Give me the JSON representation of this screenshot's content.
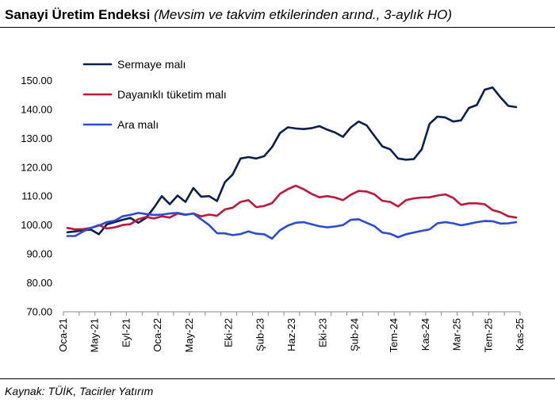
{
  "header": {
    "title": "Sanayi Üretim Endeksi",
    "subtitle": " (Mevsim ve takvim etkilerinden arınd., 3-aylık HO)"
  },
  "footer": {
    "source": "Kaynak: TÜİK, Tacirler Yatırım"
  },
  "chart_data": {
    "type": "line",
    "title": "Sanayi Üretim Endeksi",
    "xlabel": "",
    "ylabel": "",
    "ylim": [
      70,
      160
    ],
    "y_ticks": [
      "70.00",
      "80.00",
      "90.00",
      "100.00",
      "110.00",
      "120.00",
      "130.00",
      "140.00",
      "150.00"
    ],
    "x_ticks": [
      "Oca-21",
      "May-21",
      "Eyl-21",
      "Oca-22",
      "May-22",
      "Eki-22",
      "Şub-23",
      "Haz-23",
      "Eki-23",
      "Şub-24",
      "Tem-24",
      "Kas-24",
      "Mar-25",
      "Tem-25",
      "Kas-25"
    ],
    "x_tick_index": [
      0,
      4,
      8,
      12,
      16,
      21,
      25,
      29,
      33,
      37,
      42,
      46,
      50,
      54,
      58
    ],
    "grid": false,
    "legend": "top-left",
    "n_points": 58,
    "series": [
      {
        "name": "Sermaye malı",
        "color": "#0b1f4f",
        "values": [
          97.5,
          97.8,
          98.2,
          98.4,
          96.8,
          100.2,
          101.0,
          101.8,
          102.5,
          100.8,
          102.5,
          106.0,
          110.0,
          107.2,
          110.2,
          108.0,
          112.8,
          109.8,
          110.0,
          108.3,
          114.8,
          117.5,
          123.0,
          123.5,
          123.0,
          123.8,
          127.0,
          131.8,
          133.8,
          133.4,
          133.2,
          133.5,
          134.2,
          133.0,
          132.0,
          130.5,
          133.8,
          135.8,
          134.5,
          130.8,
          127.2,
          126.2,
          123.0,
          122.6,
          122.8,
          126.2,
          135.0,
          137.5,
          137.2,
          135.8,
          136.2,
          140.5,
          141.5,
          146.8,
          147.6,
          144.2,
          141.2,
          140.8
        ]
      },
      {
        "name": "Dayanıklı tüketim malı",
        "color": "#c0163a",
        "values": [
          99.0,
          98.5,
          98.6,
          99.0,
          100.0,
          98.8,
          99.2,
          100.0,
          100.3,
          102.0,
          102.8,
          102.3,
          103.0,
          102.6,
          104.0,
          103.5,
          104.0,
          103.0,
          103.6,
          103.2,
          105.4,
          106.0,
          108.0,
          108.6,
          106.2,
          106.6,
          107.6,
          110.8,
          112.4,
          113.6,
          112.4,
          110.8,
          109.6,
          110.0,
          109.5,
          108.6,
          110.5,
          111.8,
          111.6,
          110.6,
          108.4,
          108.0,
          106.4,
          108.6,
          109.2,
          109.5,
          109.6,
          110.2,
          110.6,
          109.4,
          107.0,
          107.5,
          107.5,
          107.2,
          105.2,
          104.4,
          103.0,
          102.6
        ]
      },
      {
        "name": "Ara malı",
        "color": "#2b4bd6",
        "values": [
          96.2,
          96.2,
          97.8,
          99.0,
          99.8,
          101.0,
          101.5,
          103.0,
          103.5,
          104.2,
          103.8,
          103.5,
          103.6,
          104.0,
          104.2,
          103.6,
          104.0,
          102.0,
          100.0,
          97.2,
          97.1,
          96.5,
          96.9,
          97.8,
          97.0,
          96.8,
          95.3,
          98.2,
          99.8,
          100.8,
          101.0,
          100.3,
          99.6,
          99.2,
          99.5,
          100.0,
          101.8,
          102.0,
          100.8,
          99.6,
          97.4,
          97.0,
          95.8,
          96.8,
          97.4,
          98.0,
          98.5,
          100.6,
          101.0,
          100.6,
          99.9,
          100.4,
          101.0,
          101.4,
          101.3,
          100.5,
          100.6,
          101.0
        ]
      }
    ]
  }
}
